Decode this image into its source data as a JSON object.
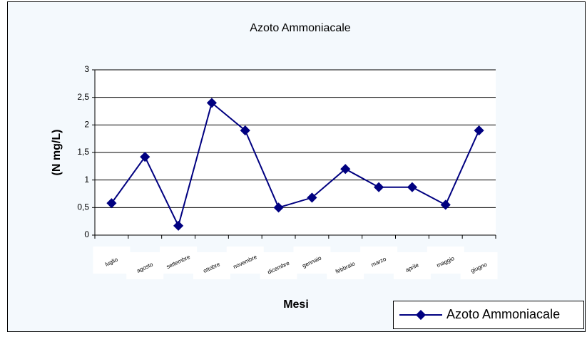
{
  "chart_data": {
    "type": "line",
    "title": "Azoto Ammoniacale",
    "x_label": "Mesi",
    "y_label": "(N mg/L)",
    "categories": [
      "luglio",
      "agosto",
      "settembre",
      "ottobre",
      "novembre",
      "dicembre",
      "gennaio",
      "febbraio",
      "marzo",
      "aprile",
      "maggio",
      "giugno"
    ],
    "series": [
      {
        "name": "Azoto Ammoniacale",
        "color": "#000080",
        "values": [
          0.58,
          1.42,
          0.17,
          2.4,
          1.9,
          0.5,
          0.68,
          1.2,
          0.87,
          0.87,
          0.55,
          1.9
        ]
      }
    ],
    "ylim": [
      0,
      3
    ],
    "yticks": [
      0,
      {
        "value": 0.5,
        "label": "0,5"
      },
      1,
      {
        "value": 1.5,
        "label": "1,5"
      },
      2,
      {
        "value": 2.5,
        "label": "2,5"
      },
      3
    ],
    "grid": true,
    "legend": "bottom-right"
  }
}
